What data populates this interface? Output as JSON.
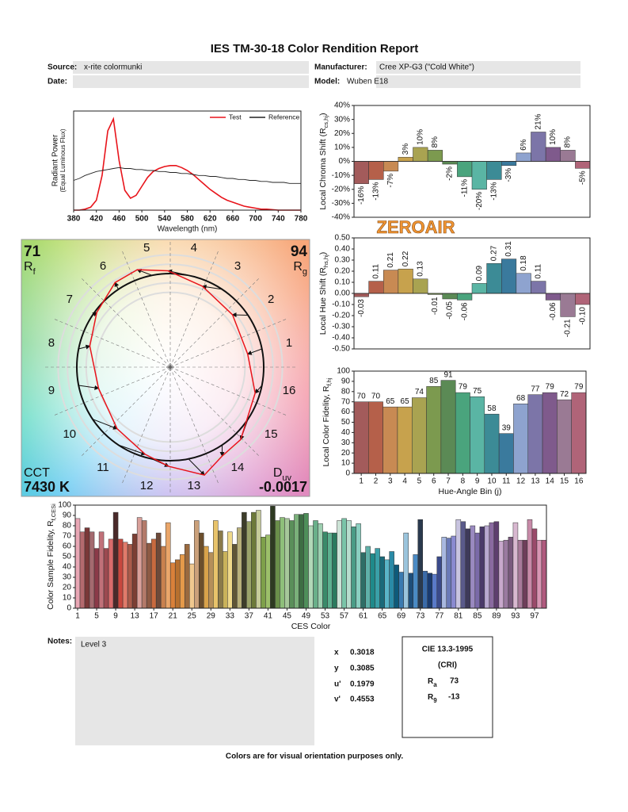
{
  "header": {
    "title": "IES TM-30-18 Color Rendition Report",
    "fields": [
      {
        "label": "Source:",
        "value": "x-rite colormunki"
      },
      {
        "label": "Manufacturer:",
        "value": "Cree XP-G3 (\"Cold White\")"
      },
      {
        "label": "Date:"
      },
      {
        "label": "Model:",
        "value": "Wuben E18"
      }
    ]
  },
  "watermark": "ZEROAIR",
  "chart_data": [
    {
      "type": "line",
      "ylabel": "Radiant Power",
      "ylabel2": "(Equal Luminous Flux)",
      "xlabel": "Wavelength (nm)",
      "x": [
        380,
        390,
        400,
        410,
        420,
        430,
        440,
        450,
        460,
        470,
        480,
        490,
        500,
        510,
        520,
        530,
        540,
        550,
        560,
        570,
        580,
        590,
        600,
        610,
        620,
        630,
        640,
        650,
        660,
        670,
        680,
        690,
        700,
        710,
        720,
        730,
        740,
        750,
        760,
        770,
        780
      ],
      "xlim": [
        380,
        780
      ],
      "xticks": [
        380,
        420,
        460,
        500,
        540,
        580,
        620,
        660,
        700,
        740,
        780
      ],
      "ylim": [
        0,
        1
      ],
      "legend": "upper right",
      "series": [
        {
          "name": "Test",
          "color": "#e8141b",
          "values": [
            0,
            0,
            0.01,
            0.03,
            0.1,
            0.35,
            0.8,
            0.92,
            0.5,
            0.2,
            0.12,
            0.15,
            0.24,
            0.33,
            0.39,
            0.42,
            0.44,
            0.45,
            0.45,
            0.43,
            0.4,
            0.36,
            0.31,
            0.26,
            0.21,
            0.17,
            0.13,
            0.1,
            0.08,
            0.06,
            0.04,
            0.03,
            0.02,
            0.01,
            0.01,
            0.005,
            0,
            0,
            0,
            0,
            0
          ]
        },
        {
          "name": "Reference",
          "color": "#222222",
          "values": [
            0.3,
            0.32,
            0.35,
            0.37,
            0.39,
            0.4,
            0.41,
            0.42,
            0.43,
            0.42,
            0.42,
            0.41,
            0.41,
            0.4,
            0.4,
            0.39,
            0.39,
            0.38,
            0.38,
            0.37,
            0.37,
            0.36,
            0.35,
            0.35,
            0.34,
            0.34,
            0.33,
            0.32,
            0.32,
            0.31,
            0.31,
            0.3,
            0.3,
            0.29,
            0.29,
            0.28,
            0.28,
            0.28,
            0.27,
            0.27,
            0.27
          ]
        }
      ]
    },
    {
      "type": "bar",
      "ylabel": [
        "Local Chroma Shift (R",
        "cs,hj",
        ")"
      ],
      "data_labels": true,
      "values": [
        -16,
        -13,
        -7,
        3,
        10,
        8,
        -2,
        -11,
        -20,
        -13,
        -3,
        6,
        21,
        10,
        8,
        -5
      ],
      "value_labels": [
        "-16%",
        "-13%",
        "-7%",
        "3%",
        "10%",
        "8%",
        "-2%",
        "-11%",
        "-20%",
        "-13%",
        "-3%",
        "6%",
        "21%",
        "10%",
        "8%",
        "-5%"
      ],
      "colors": [
        "#a35b5b",
        "#b5604a",
        "#c88a53",
        "#c7a24d",
        "#a9a351",
        "#7c9a4f",
        "#5b8a55",
        "#4aa47d",
        "#5ab5a4",
        "#3c8b96",
        "#3a7a9d",
        "#8ea3cf",
        "#7c75a8",
        "#7f5a8c",
        "#9a7a94",
        "#b06478"
      ],
      "ylim": [
        -40,
        40
      ],
      "yticks": [
        {
          "value": -40,
          "label": "-40%"
        },
        {
          "value": -30,
          "label": "-30%"
        },
        {
          "value": -20,
          "label": "-20%"
        },
        {
          "value": -10,
          "label": "-10%"
        },
        {
          "value": 0,
          "label": "0%"
        },
        {
          "value": 10,
          "label": "10%"
        },
        {
          "value": 20,
          "label": "20%"
        },
        {
          "value": 30,
          "label": "30%"
        },
        {
          "value": 40,
          "label": "40%"
        }
      ]
    },
    {
      "type": "bar",
      "ylabel": [
        "Local Hue Shift (R",
        "hs,hj",
        ")"
      ],
      "data_labels": true,
      "values": [
        -0.03,
        0.11,
        0.21,
        0.22,
        0.13,
        -0.01,
        -0.05,
        -0.06,
        0.09,
        0.27,
        0.31,
        0.18,
        0.11,
        -0.06,
        -0.21,
        -0.1
      ],
      "value_labels": [
        "-0.03",
        "0.11",
        "0.21",
        "0.22",
        "0.13",
        "-0.01",
        "-0.05",
        "-0.06",
        "0.09",
        "0.27",
        "0.31",
        "0.18",
        "0.11",
        "-0.06",
        "-0.21",
        "-0.10"
      ],
      "colors": [
        "#a35b5b",
        "#b5604a",
        "#c88a53",
        "#c7a24d",
        "#a9a351",
        "#7c9a4f",
        "#5b8a55",
        "#4aa47d",
        "#5ab5a4",
        "#3c8b96",
        "#3a7a9d",
        "#8ea3cf",
        "#7c75a8",
        "#7f5a8c",
        "#9a7a94",
        "#b06478"
      ],
      "ylim": [
        -0.5,
        0.5
      ],
      "yticks": [
        {
          "value": -0.5,
          "label": "-0.50"
        },
        {
          "value": -0.4,
          "label": "-0.40"
        },
        {
          "value": -0.3,
          "label": "-0.30"
        },
        {
          "value": -0.2,
          "label": "-0.20"
        },
        {
          "value": -0.1,
          "label": "-0.10"
        },
        {
          "value": 0,
          "label": "0.00"
        },
        {
          "value": 0.1,
          "label": "0.10"
        },
        {
          "value": 0.2,
          "label": "0.20"
        },
        {
          "value": 0.3,
          "label": "0.30"
        },
        {
          "value": 0.4,
          "label": "0.40"
        },
        {
          "value": 0.5,
          "label": "0.50"
        }
      ]
    },
    {
      "type": "bar",
      "ylabel": [
        "Local Color Fidelity, R",
        "f,hj"
      ],
      "xlabel": "Hue-Angle Bin (j)",
      "data_labels": true,
      "categories": [
        1,
        2,
        3,
        4,
        5,
        6,
        7,
        8,
        9,
        10,
        11,
        12,
        13,
        14,
        15,
        16
      ],
      "values": [
        70,
        70,
        65,
        65,
        74,
        85,
        91,
        79,
        75,
        58,
        39,
        68,
        77,
        79,
        72,
        79
      ],
      "colors": [
        "#a35b5b",
        "#b5604a",
        "#c88a53",
        "#c7a24d",
        "#a9a351",
        "#7c9a4f",
        "#5b8a55",
        "#4aa47d",
        "#5ab5a4",
        "#3c8b96",
        "#3a7a9d",
        "#8ea3cf",
        "#7c75a8",
        "#7f5a8c",
        "#9a7a94",
        "#b06478"
      ],
      "ylim": [
        0,
        100
      ],
      "yticks": [
        0,
        10,
        20,
        30,
        40,
        50,
        60,
        70,
        80,
        90,
        100
      ]
    },
    {
      "type": "bar",
      "ylabel": [
        "Color Sample Fidelity, R",
        "f,CESi"
      ],
      "xlabel": "CES Color",
      "categories": [
        1,
        null,
        null,
        null,
        5,
        null,
        null,
        null,
        9,
        null,
        null,
        null,
        13,
        null,
        null,
        null,
        17,
        null,
        null,
        null,
        21,
        null,
        null,
        null,
        25,
        null,
        null,
        null,
        29,
        null,
        null,
        null,
        33,
        null,
        null,
        null,
        37,
        null,
        null,
        null,
        41,
        null,
        null,
        null,
        45,
        null,
        null,
        null,
        49,
        null,
        null,
        null,
        53,
        null,
        null,
        null,
        57,
        null,
        null,
        null,
        61,
        null,
        null,
        null,
        65,
        null,
        null,
        null,
        69,
        null,
        null,
        null,
        73,
        null,
        null,
        null,
        77,
        null,
        null,
        null,
        81,
        null,
        null,
        null,
        85,
        null,
        null,
        null,
        89,
        null,
        null,
        null,
        93,
        null,
        null,
        null,
        97,
        null,
        null
      ],
      "values": [
        87,
        74,
        78,
        74,
        58,
        74,
        58,
        67,
        93,
        67,
        64,
        62,
        72,
        88,
        85,
        63,
        67,
        73,
        60,
        83,
        44,
        47,
        52,
        62,
        43,
        85,
        73,
        60,
        54,
        85,
        75,
        55,
        74,
        62,
        78,
        93,
        84,
        93,
        95,
        69,
        71,
        99,
        85,
        88,
        87,
        85,
        91,
        91,
        92,
        80,
        85,
        82,
        74,
        73,
        73,
        85,
        87,
        85,
        79,
        82,
        54,
        60,
        53,
        58,
        50,
        47,
        55,
        42,
        35,
        73,
        34,
        52,
        86,
        36,
        34,
        33,
        50,
        69,
        68,
        70,
        86,
        84,
        77,
        80,
        73,
        79,
        80,
        83,
        84,
        65,
        66,
        69,
        83,
        66,
        66,
        86,
        77,
        66,
        66
      ],
      "colors": [
        "#e9a7b5",
        "#b46a6e",
        "#7a3838",
        "#a46a6f",
        "#8b3a48",
        "#c17179",
        "#9c4a50",
        "#d96b6b",
        "#4a2a2a",
        "#c8473e",
        "#e07a6a",
        "#a95a4a",
        "#7b3e33",
        "#d9a09a",
        "#b47a6a",
        "#8d5a44",
        "#c86a3f",
        "#6e4a3a",
        "#c9814e",
        "#eaa66a",
        "#d9813a",
        "#b7702e",
        "#e59a4a",
        "#9a6a3f",
        "#f0c88f",
        "#caa07a",
        "#6b4e2c",
        "#d9a24a",
        "#b58f5a",
        "#e8c36a",
        "#8a7a4a",
        "#c9b25a",
        "#efd98a",
        "#5e5536",
        "#b8b07a",
        "#3d3d2a",
        "#9aa36a",
        "#6d7a3a",
        "#c6cc9a",
        "#7ea04a",
        "#9cbf6a",
        "#2e3a22",
        "#6a8f4a",
        "#8ebf7a",
        "#a6c79a",
        "#5a8f5a",
        "#7ab07a",
        "#3e6e44",
        "#4e8f5a",
        "#b2d8b8",
        "#6ab08a",
        "#9ccfb0",
        "#3a8a6a",
        "#5cb08f",
        "#2a7a5e",
        "#cce3d6",
        "#7ac4a8",
        "#b8dccd",
        "#4a9c86",
        "#8acfc0",
        "#2e6e66",
        "#5fb0a8",
        "#1f8a8a",
        "#3aa0a8",
        "#1a6a7a",
        "#5ab5c8",
        "#2a8aa6",
        "#0e5a7a",
        "#3a7ab0",
        "#9ac4dc",
        "#1e4e7a",
        "#4a8ac4",
        "#2a3a4e",
        "#3a6aa8",
        "#1a3a6e",
        "#5a7ac8",
        "#3a4a8a",
        "#a8b8e0",
        "#6a7ab8",
        "#8a8ad0",
        "#c8c4e0",
        "#5a5a8a",
        "#3e3a5a",
        "#9a8ac0",
        "#7a6aa8",
        "#4a3a6a",
        "#b8a8d0",
        "#8a6aa0",
        "#5e3e6e",
        "#c8a8cc",
        "#9a7aa0",
        "#7a5a7e",
        "#d8b8d0",
        "#a87a9a",
        "#6e3e5a",
        "#c88aa8",
        "#9a4a6a",
        "#d896b4",
        "#b05a7e"
      ],
      "ylim": [
        0,
        100
      ],
      "yticks": [
        0,
        10,
        20,
        30,
        40,
        50,
        60,
        70,
        80,
        90,
        100
      ]
    }
  ],
  "vector_graphic": {
    "rf": 71,
    "rf_symbol": "R",
    "rf_sub": "f",
    "rg": 94,
    "rg_symbol": "R",
    "rg_sub": "g",
    "cct_label": "CCT",
    "cct": "7430 K",
    "duv_symbol": "D",
    "duv_sub": "uv",
    "duv": -0.0017,
    "bin_labels": [
      1,
      2,
      3,
      4,
      5,
      6,
      7,
      8,
      9,
      10,
      11,
      12,
      13,
      14,
      15,
      16
    ]
  },
  "notes": {
    "label": "Notes:",
    "text": "Level 3"
  },
  "chromaticity": [
    {
      "label": "x",
      "value": 0.3018
    },
    {
      "label": "y",
      "value": 0.3085
    },
    {
      "label": "u'",
      "value": 0.1979
    },
    {
      "label": "v'",
      "value": 0.4553
    }
  ],
  "cri": {
    "title": "CIE 13.3-1995",
    "subtitle": "(CRI)",
    "items": [
      {
        "symbol": "R",
        "sub": "a",
        "value": 73
      },
      {
        "symbol": "R",
        "sub": "9",
        "value": -13
      }
    ]
  },
  "footer": "Colors are for visual orientation purposes only."
}
